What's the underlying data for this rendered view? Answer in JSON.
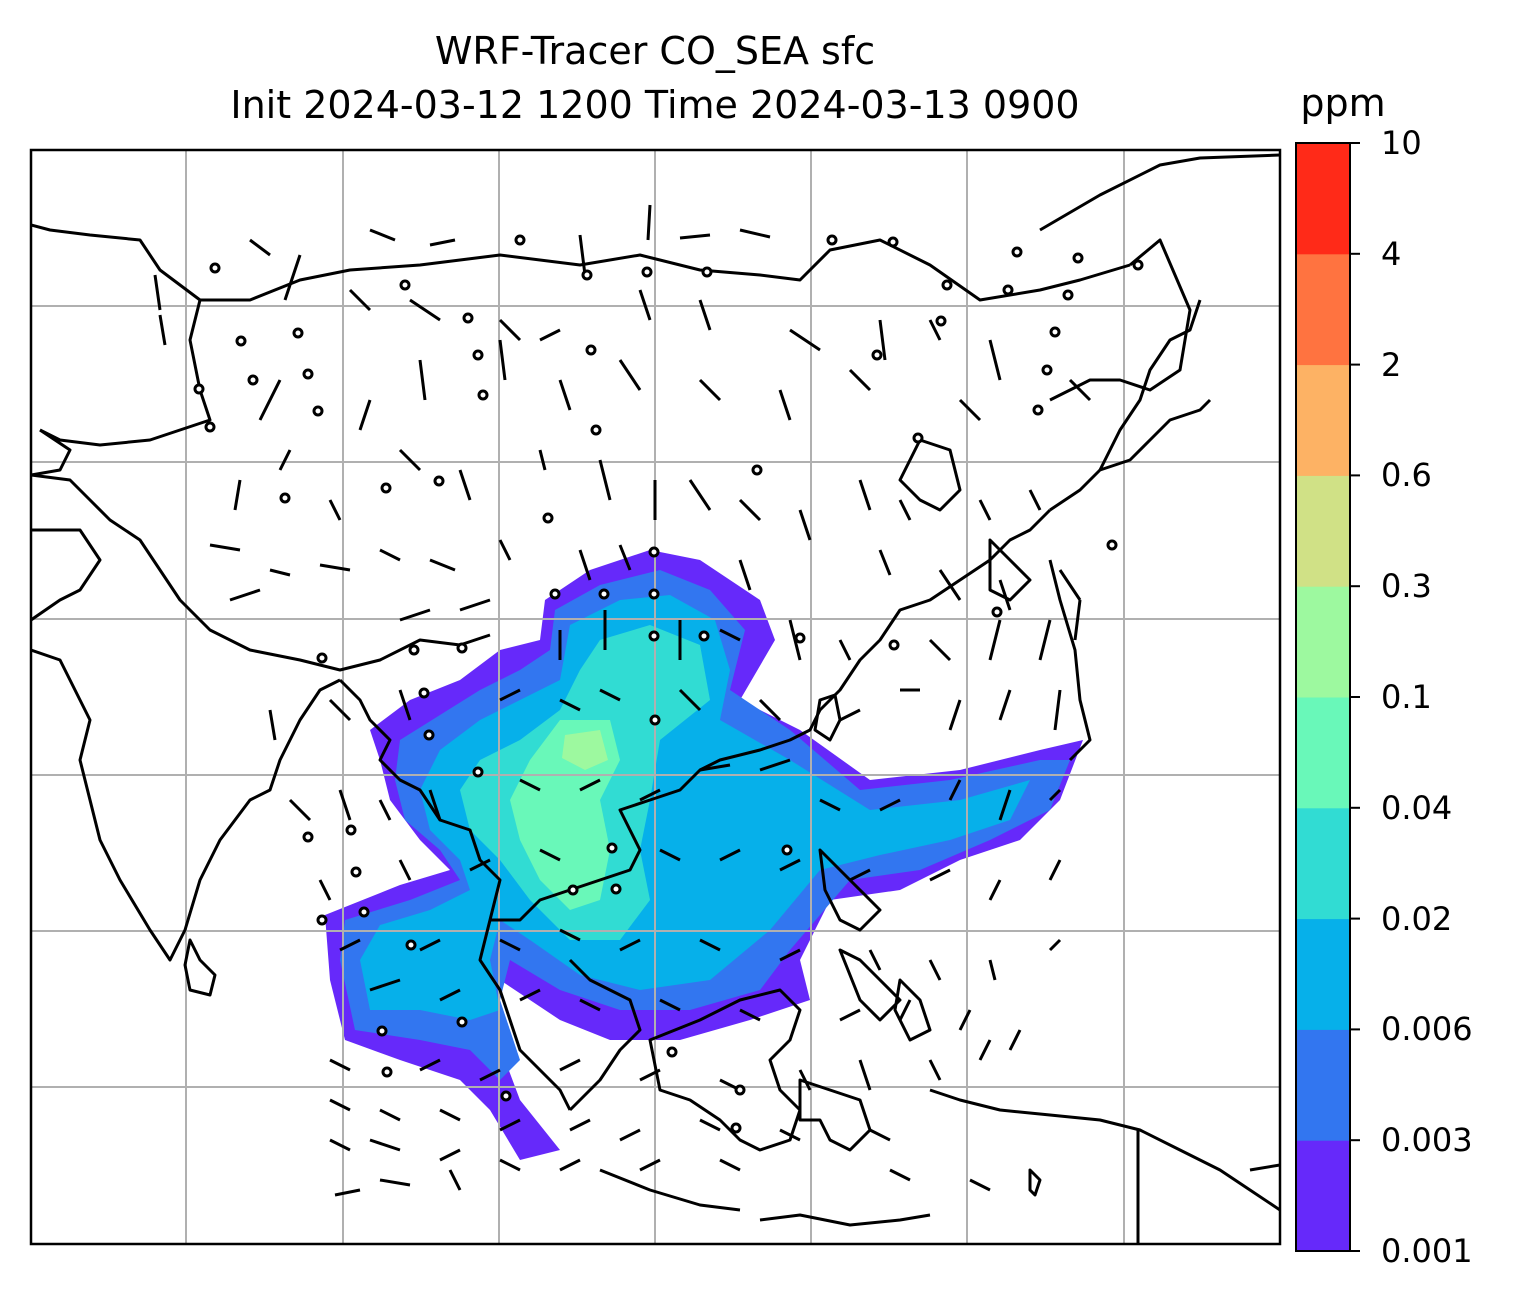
{
  "title": {
    "line1": "WRF-Tracer CO_SEA sfc",
    "line2": "Init 2024-03-12 1200 Time 2024-03-13 0900"
  },
  "colorbar": {
    "unit": "ppm",
    "levels": [
      "0.001",
      "0.003",
      "0.006",
      "0.02",
      "0.04",
      "0.1",
      "0.3",
      "0.6",
      "2",
      "4",
      "10"
    ],
    "colors": [
      "#6629fa",
      "#3276f0",
      "#06b0ea",
      "#31dcd3",
      "#69f8b9",
      "#9df99f",
      "#d0e186",
      "#fdb264",
      "#ff7340",
      "#ff2a18"
    ]
  },
  "map": {
    "gridlines": true,
    "gridline_color": "#b0b0b0",
    "coastline_color": "#000000",
    "wind_barb_color": "#000000"
  }
}
